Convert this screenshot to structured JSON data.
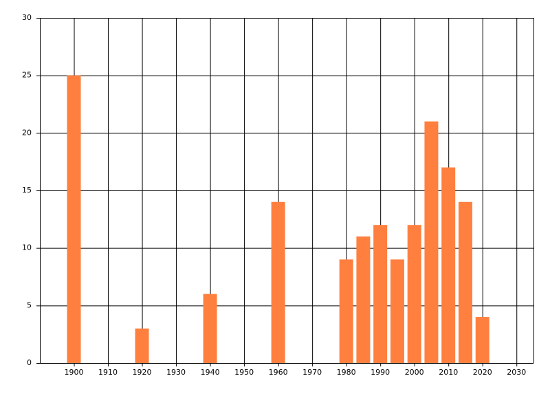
{
  "chart_data": {
    "type": "bar",
    "x": [
      1900,
      1920,
      1940,
      1960,
      1980,
      1985,
      1990,
      1995,
      2000,
      2005,
      2010,
      2015,
      2020
    ],
    "values": [
      25,
      3,
      6,
      14,
      9,
      11,
      12,
      9,
      12,
      21,
      17,
      14,
      4
    ],
    "color": "#ff7f3f",
    "xlim": [
      1890,
      2035
    ],
    "xticks": [
      1900,
      1910,
      1920,
      1930,
      1940,
      1950,
      1960,
      1970,
      1980,
      1990,
      2000,
      2010,
      2020,
      2030
    ],
    "ylim": [
      0,
      30
    ],
    "yticks": [
      0,
      5,
      10,
      15,
      20,
      25,
      30
    ],
    "grid": true
  }
}
